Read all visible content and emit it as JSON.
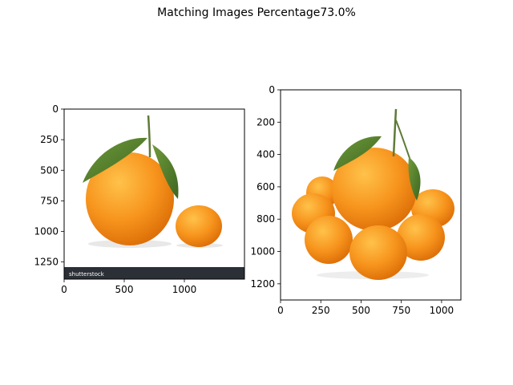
{
  "figure": {
    "title": "Matching Images Percentage73.0%"
  },
  "chart_data": [
    {
      "type": "image",
      "title": "",
      "image_width": 1500,
      "image_height": 1390,
      "xticks": [
        0,
        500,
        1000
      ],
      "yticks": [
        0,
        250,
        500,
        750,
        1000,
        1250
      ],
      "watermark_text": "shutterstock",
      "colors": {
        "orange": "#f7941d",
        "leaf": "#4f7a2a",
        "banner": "#2b2f36"
      }
    },
    {
      "type": "image",
      "title": "",
      "image_width": 1120,
      "image_height": 1300,
      "xticks": [
        0,
        250,
        500,
        750,
        1000
      ],
      "yticks": [
        0,
        200,
        400,
        600,
        800,
        1000,
        1200
      ],
      "colors": {
        "orange": "#f7941d",
        "leaf": "#4f7a2a"
      }
    }
  ]
}
